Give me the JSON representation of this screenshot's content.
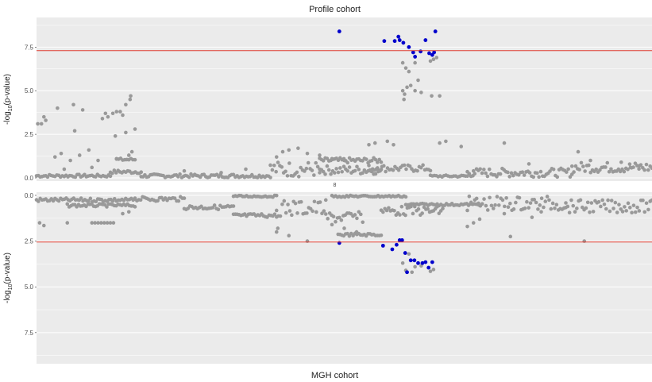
{
  "chart_data": [
    {
      "type": "scatter",
      "title": "Profile cohort",
      "xlabel": "",
      "ylabel": "-log10(p-value)",
      "ylim": [
        0,
        9.2
      ],
      "y_ticks": [
        "0.0",
        "2.5",
        "5.0",
        "7.5"
      ],
      "y_tick_values": [
        0,
        2.5,
        5.0,
        7.5
      ],
      "significance_line": 7.3,
      "grid": true,
      "colors": {
        "background": "#ebebeb",
        "grid": "#ffffff",
        "point": "#999999",
        "highlight": "#0000cc",
        "threshold": "#e03c31"
      },
      "highlight_points": [
        {
          "x": 0.492,
          "y": 8.4
        },
        {
          "x": 0.565,
          "y": 7.85
        },
        {
          "x": 0.582,
          "y": 7.85
        },
        {
          "x": 0.588,
          "y": 8.1
        },
        {
          "x": 0.59,
          "y": 7.9
        },
        {
          "x": 0.596,
          "y": 7.75
        },
        {
          "x": 0.605,
          "y": 7.5
        },
        {
          "x": 0.612,
          "y": 7.2
        },
        {
          "x": 0.615,
          "y": 6.95
        },
        {
          "x": 0.624,
          "y": 7.25
        },
        {
          "x": 0.632,
          "y": 7.9
        },
        {
          "x": 0.638,
          "y": 7.15
        },
        {
          "x": 0.643,
          "y": 7.05
        },
        {
          "x": 0.646,
          "y": 7.2
        },
        {
          "x": 0.648,
          "y": 8.4
        }
      ],
      "gray_points": [
        {
          "x": 0.002,
          "y": 3.1
        },
        {
          "x": 0.008,
          "y": 3.1
        },
        {
          "x": 0.012,
          "y": 3.5
        },
        {
          "x": 0.015,
          "y": 3.3
        },
        {
          "x": 0.034,
          "y": 4.0
        },
        {
          "x": 0.06,
          "y": 4.2
        },
        {
          "x": 0.075,
          "y": 3.9
        },
        {
          "x": 0.062,
          "y": 2.7
        },
        {
          "x": 0.107,
          "y": 3.4
        },
        {
          "x": 0.112,
          "y": 3.7
        },
        {
          "x": 0.116,
          "y": 3.5
        },
        {
          "x": 0.124,
          "y": 3.7
        },
        {
          "x": 0.13,
          "y": 3.8
        },
        {
          "x": 0.136,
          "y": 3.8
        },
        {
          "x": 0.14,
          "y": 3.6
        },
        {
          "x": 0.145,
          "y": 4.2
        },
        {
          "x": 0.152,
          "y": 4.5
        },
        {
          "x": 0.153,
          "y": 4.7
        },
        {
          "x": 0.128,
          "y": 2.4
        },
        {
          "x": 0.16,
          "y": 2.8
        },
        {
          "x": 0.145,
          "y": 2.6
        },
        {
          "x": 0.03,
          "y": 1.2
        },
        {
          "x": 0.04,
          "y": 1.4
        },
        {
          "x": 0.055,
          "y": 1.0
        },
        {
          "x": 0.07,
          "y": 1.3
        },
        {
          "x": 0.085,
          "y": 1.6
        },
        {
          "x": 0.1,
          "y": 1.0
        },
        {
          "x": 0.13,
          "y": 1.1
        },
        {
          "x": 0.15,
          "y": 1.3
        },
        {
          "x": 0.155,
          "y": 1.5
        },
        {
          "x": 0.045,
          "y": 0.5
        },
        {
          "x": 0.09,
          "y": 0.6
        },
        {
          "x": 0.39,
          "y": 1.2
        },
        {
          "x": 0.4,
          "y": 1.5
        },
        {
          "x": 0.41,
          "y": 1.6
        },
        {
          "x": 0.425,
          "y": 1.7
        },
        {
          "x": 0.44,
          "y": 1.4
        },
        {
          "x": 0.46,
          "y": 1.3
        },
        {
          "x": 0.48,
          "y": 1.1
        },
        {
          "x": 0.5,
          "y": 1.0
        },
        {
          "x": 0.54,
          "y": 1.9
        },
        {
          "x": 0.55,
          "y": 2.0
        },
        {
          "x": 0.57,
          "y": 2.1
        },
        {
          "x": 0.58,
          "y": 1.9
        },
        {
          "x": 0.595,
          "y": 6.6
        },
        {
          "x": 0.6,
          "y": 6.3
        },
        {
          "x": 0.605,
          "y": 6.1
        },
        {
          "x": 0.615,
          "y": 6.6
        },
        {
          "x": 0.62,
          "y": 5.6
        },
        {
          "x": 0.595,
          "y": 5.0
        },
        {
          "x": 0.598,
          "y": 4.8
        },
        {
          "x": 0.602,
          "y": 5.2
        },
        {
          "x": 0.608,
          "y": 5.3
        },
        {
          "x": 0.615,
          "y": 5.0
        },
        {
          "x": 0.625,
          "y": 4.9
        },
        {
          "x": 0.597,
          "y": 4.5
        },
        {
          "x": 0.64,
          "y": 6.7
        },
        {
          "x": 0.645,
          "y": 6.8
        },
        {
          "x": 0.65,
          "y": 6.9
        },
        {
          "x": 0.642,
          "y": 4.7
        },
        {
          "x": 0.655,
          "y": 4.7
        },
        {
          "x": 0.655,
          "y": 2.0
        },
        {
          "x": 0.665,
          "y": 2.1
        },
        {
          "x": 0.69,
          "y": 1.8
        },
        {
          "x": 0.71,
          "y": 0.4
        },
        {
          "x": 0.76,
          "y": 2.0
        },
        {
          "x": 0.8,
          "y": 0.8
        },
        {
          "x": 0.88,
          "y": 1.5
        },
        {
          "x": 0.9,
          "y": 1.0
        },
        {
          "x": 0.95,
          "y": 0.9
        },
        {
          "x": 0.98,
          "y": 0.7
        },
        {
          "x": 0.965,
          "y": 0.6
        },
        {
          "x": 0.24,
          "y": 0.4
        },
        {
          "x": 0.3,
          "y": 0.3
        },
        {
          "x": 0.34,
          "y": 0.5
        }
      ],
      "bands": [
        {
          "x0": 0.0,
          "x1": 0.12,
          "y": 0.12,
          "spread": 0.08
        },
        {
          "x0": 0.12,
          "x1": 0.17,
          "y": 0.35,
          "spread": 0.1
        },
        {
          "x0": 0.13,
          "x1": 0.16,
          "y": 1.05,
          "spread": 0.08
        },
        {
          "x0": 0.17,
          "x1": 0.38,
          "y": 0.12,
          "spread": 0.1
        },
        {
          "x0": 0.38,
          "x1": 0.46,
          "y": 0.5,
          "spread": 0.45
        },
        {
          "x0": 0.46,
          "x1": 0.56,
          "y": 1.0,
          "spread": 0.15
        },
        {
          "x0": 0.46,
          "x1": 0.56,
          "y": 0.45,
          "spread": 0.25
        },
        {
          "x0": 0.54,
          "x1": 0.64,
          "y": 0.55,
          "spread": 0.2
        },
        {
          "x0": 0.64,
          "x1": 0.7,
          "y": 0.1,
          "spread": 0.06
        },
        {
          "x0": 0.7,
          "x1": 0.87,
          "y": 0.3,
          "spread": 0.25
        },
        {
          "x0": 0.87,
          "x1": 1.0,
          "y": 0.6,
          "spread": 0.3
        }
      ]
    },
    {
      "type": "scatter",
      "title": "MGH cohort",
      "xlabel": "",
      "ylabel": "-log10(p-value)",
      "ylim": [
        0,
        9.2
      ],
      "y_reversed": true,
      "y_ticks": [
        "0.0",
        "2.5",
        "5.0",
        "7.5"
      ],
      "y_tick_values": [
        0,
        2.5,
        5.0,
        7.5
      ],
      "significance_line": 2.55,
      "grid": true,
      "highlight_points": [
        {
          "x": 0.492,
          "y": 2.6
        },
        {
          "x": 0.563,
          "y": 2.75
        },
        {
          "x": 0.578,
          "y": 2.95
        },
        {
          "x": 0.585,
          "y": 2.7
        },
        {
          "x": 0.59,
          "y": 2.45
        },
        {
          "x": 0.594,
          "y": 2.45
        },
        {
          "x": 0.599,
          "y": 3.15
        },
        {
          "x": 0.602,
          "y": 4.2
        },
        {
          "x": 0.608,
          "y": 3.55
        },
        {
          "x": 0.614,
          "y": 3.55
        },
        {
          "x": 0.62,
          "y": 3.7
        },
        {
          "x": 0.627,
          "y": 3.7
        },
        {
          "x": 0.632,
          "y": 3.65
        },
        {
          "x": 0.637,
          "y": 3.95
        },
        {
          "x": 0.643,
          "y": 3.65
        }
      ],
      "gray_points": [
        {
          "x": 0.005,
          "y": 1.5
        },
        {
          "x": 0.012,
          "y": 1.65
        },
        {
          "x": 0.05,
          "y": 1.5
        },
        {
          "x": 0.09,
          "y": 1.5
        },
        {
          "x": 0.095,
          "y": 1.5
        },
        {
          "x": 0.1,
          "y": 1.5
        },
        {
          "x": 0.105,
          "y": 1.5
        },
        {
          "x": 0.11,
          "y": 1.5
        },
        {
          "x": 0.115,
          "y": 1.5
        },
        {
          "x": 0.12,
          "y": 1.5
        },
        {
          "x": 0.125,
          "y": 1.5
        },
        {
          "x": 0.14,
          "y": 1.0
        },
        {
          "x": 0.15,
          "y": 0.9
        },
        {
          "x": 0.39,
          "y": 2.0
        },
        {
          "x": 0.392,
          "y": 1.8
        },
        {
          "x": 0.41,
          "y": 2.2
        },
        {
          "x": 0.44,
          "y": 2.5
        },
        {
          "x": 0.48,
          "y": 1.6
        },
        {
          "x": 0.5,
          "y": 1.8
        },
        {
          "x": 0.52,
          "y": 2.0
        },
        {
          "x": 0.595,
          "y": 3.7
        },
        {
          "x": 0.6,
          "y": 4.1
        },
        {
          "x": 0.605,
          "y": 3.2
        },
        {
          "x": 0.61,
          "y": 4.2
        },
        {
          "x": 0.615,
          "y": 3.9
        },
        {
          "x": 0.625,
          "y": 3.85
        },
        {
          "x": 0.64,
          "y": 4.15
        },
        {
          "x": 0.645,
          "y": 4.05
        },
        {
          "x": 0.7,
          "y": 1.7
        },
        {
          "x": 0.71,
          "y": 1.5
        },
        {
          "x": 0.77,
          "y": 2.25
        },
        {
          "x": 0.89,
          "y": 2.5
        },
        {
          "x": 0.72,
          "y": 1.3
        },
        {
          "x": 0.76,
          "y": 1.0
        },
        {
          "x": 0.805,
          "y": 1.2
        },
        {
          "x": 0.82,
          "y": 0.9
        }
      ],
      "bands": [
        {
          "x0": 0.0,
          "x1": 0.16,
          "y": 0.25,
          "spread": 0.1
        },
        {
          "x0": 0.05,
          "x1": 0.16,
          "y": 0.55,
          "spread": 0.08
        },
        {
          "x0": 0.16,
          "x1": 0.24,
          "y": 0.2,
          "spread": 0.12
        },
        {
          "x0": 0.24,
          "x1": 0.32,
          "y": 0.65,
          "spread": 0.12
        },
        {
          "x0": 0.32,
          "x1": 0.39,
          "y": 1.1,
          "spread": 0.1
        },
        {
          "x0": 0.32,
          "x1": 0.39,
          "y": 0.05,
          "spread": 0.05
        },
        {
          "x0": 0.39,
          "x1": 0.47,
          "y": 0.7,
          "spread": 0.45
        },
        {
          "x0": 0.47,
          "x1": 0.53,
          "y": 1.2,
          "spread": 0.3
        },
        {
          "x0": 0.49,
          "x1": 0.56,
          "y": 2.15,
          "spread": 0.08
        },
        {
          "x0": 0.48,
          "x1": 0.6,
          "y": 0.05,
          "spread": 0.05
        },
        {
          "x0": 0.56,
          "x1": 0.66,
          "y": 0.85,
          "spread": 0.25
        },
        {
          "x0": 0.6,
          "x1": 0.72,
          "y": 0.5,
          "spread": 0.06
        },
        {
          "x0": 0.7,
          "x1": 0.86,
          "y": 0.45,
          "spread": 0.4
        },
        {
          "x0": 0.86,
          "x1": 1.0,
          "y": 0.6,
          "spread": 0.35
        }
      ]
    }
  ],
  "strip_label": "8"
}
